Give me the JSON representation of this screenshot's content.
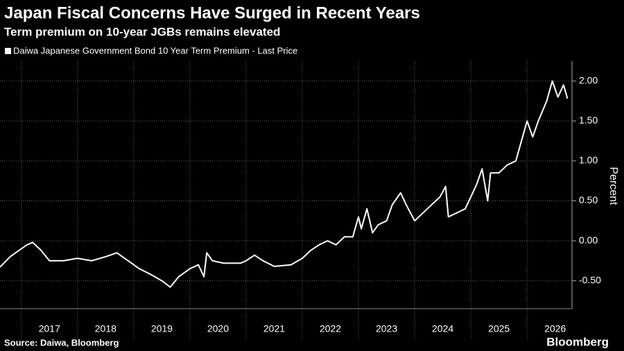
{
  "chart_data": {
    "type": "line",
    "title": "Japan Fiscal Concerns Have Surged in Recent Years",
    "subtitle": "Term premium on 10-year JGBs remains elevated",
    "y_label": "Percent",
    "source": "Source: Daiwa, Bloomberg",
    "brand": "Bloomberg",
    "x": [
      2016.62,
      2016.8,
      2017.0,
      2017.1,
      2017.2,
      2017.35,
      2017.5,
      2017.75,
      2018.0,
      2018.25,
      2018.5,
      2018.7,
      2018.9,
      2019.1,
      2019.3,
      2019.5,
      2019.65,
      2019.8,
      2020.0,
      2020.15,
      2020.25,
      2020.3,
      2020.4,
      2020.6,
      2020.9,
      2021.0,
      2021.15,
      2021.3,
      2021.5,
      2021.8,
      2022.0,
      2022.15,
      2022.3,
      2022.45,
      2022.6,
      2022.75,
      2022.9,
      2023.0,
      2023.05,
      2023.15,
      2023.25,
      2023.35,
      2023.5,
      2023.6,
      2023.75,
      2023.85,
      2024.0,
      2024.15,
      2024.3,
      2024.45,
      2024.55,
      2024.6,
      2024.75,
      2024.9,
      2025.0,
      2025.1,
      2025.2,
      2025.3,
      2025.35,
      2025.5,
      2025.65,
      2025.8,
      2025.9,
      2026.0,
      2026.1,
      2026.2,
      2026.35,
      2026.45,
      2026.55,
      2026.65,
      2026.72
    ],
    "series": [
      {
        "name": "Daiwa Japanese Government Bond 10 Year Term Premium - Last Price",
        "color": "#ffffff",
        "values": [
          -0.33,
          -0.2,
          -0.1,
          -0.05,
          -0.02,
          -0.12,
          -0.25,
          -0.25,
          -0.22,
          -0.25,
          -0.2,
          -0.15,
          -0.25,
          -0.35,
          -0.42,
          -0.5,
          -0.58,
          -0.45,
          -0.35,
          -0.3,
          -0.45,
          -0.15,
          -0.25,
          -0.28,
          -0.28,
          -0.25,
          -0.18,
          -0.25,
          -0.32,
          -0.3,
          -0.22,
          -0.12,
          -0.05,
          0.0,
          -0.05,
          0.05,
          0.05,
          0.3,
          0.15,
          0.4,
          0.1,
          0.2,
          0.25,
          0.45,
          0.6,
          0.45,
          0.25,
          0.35,
          0.45,
          0.55,
          0.68,
          0.3,
          0.35,
          0.4,
          0.55,
          0.7,
          0.9,
          0.5,
          0.85,
          0.85,
          0.95,
          1.0,
          1.25,
          1.5,
          1.3,
          1.5,
          1.75,
          2.0,
          1.8,
          1.95,
          1.78
        ]
      }
    ],
    "xlim": [
      2016.62,
      2026.8
    ],
    "xticks": [
      {
        "value": 2017.5,
        "label": "2017"
      },
      {
        "value": 2018.5,
        "label": "2018"
      },
      {
        "value": 2019.5,
        "label": "2019"
      },
      {
        "value": 2020.5,
        "label": "2020"
      },
      {
        "value": 2021.5,
        "label": "2021"
      },
      {
        "value": 2022.5,
        "label": "2022"
      },
      {
        "value": 2023.5,
        "label": "2023"
      },
      {
        "value": 2024.5,
        "label": "2024"
      },
      {
        "value": 2025.5,
        "label": "2025"
      },
      {
        "value": 2026.5,
        "label": "2026"
      }
    ],
    "xgrid": [
      2017,
      2018,
      2019,
      2020,
      2021,
      2022,
      2023,
      2024,
      2025,
      2026
    ],
    "ylim": [
      -0.85,
      2.25
    ],
    "yticks": [
      {
        "value": -0.5,
        "label": "-0.50"
      },
      {
        "value": 0,
        "label": "0.00"
      },
      {
        "value": 0.5,
        "label": "0.50"
      },
      {
        "value": 1,
        "label": "1.00"
      },
      {
        "value": 1.5,
        "label": "1.50"
      },
      {
        "value": 2,
        "label": "2.00"
      }
    ],
    "grid": true
  }
}
